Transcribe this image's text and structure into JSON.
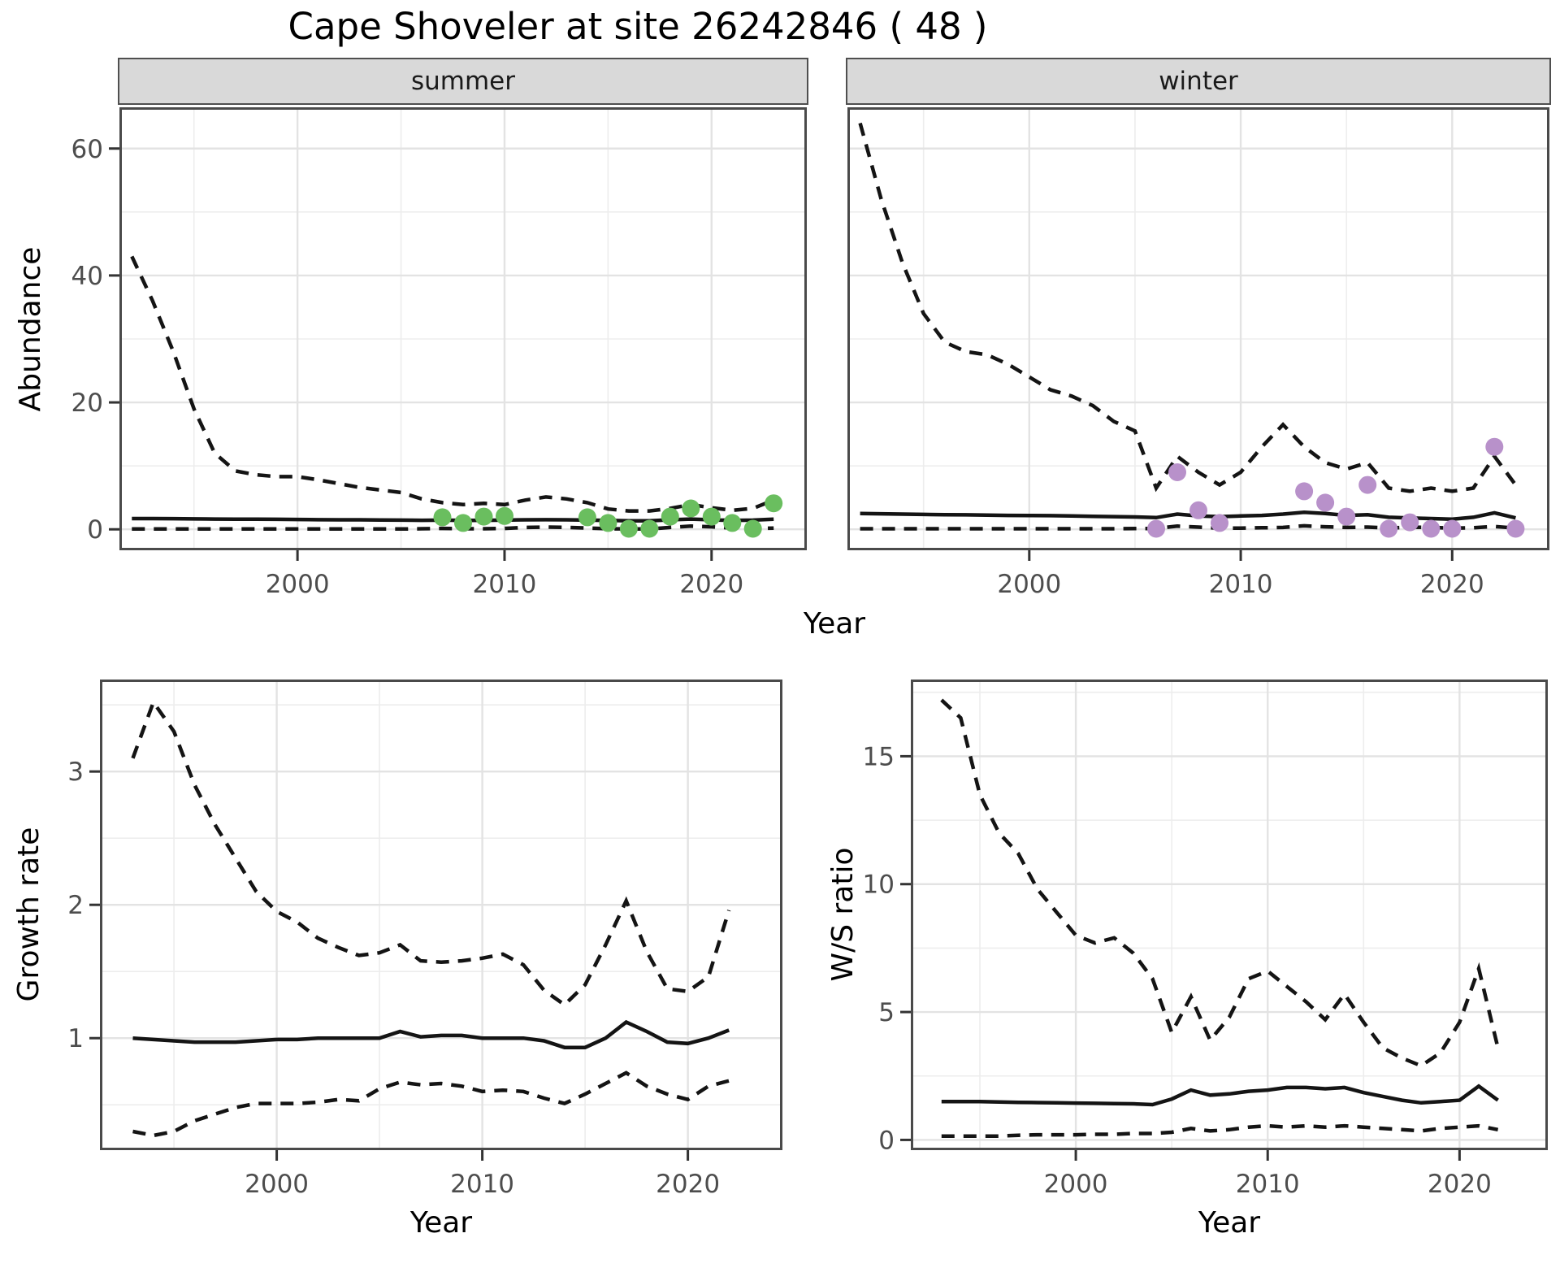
{
  "title": "Cape Shoveler at site 26242846 ( 48 )",
  "x_label": "Year",
  "colors": {
    "summer_points": "#6ABE5F",
    "winter_points": "#B891CA",
    "line": "#141414",
    "grid_major": "#E3E3E3",
    "grid_minor": "#EDEDED",
    "panel_border": "#4a4a4a",
    "strip_bg": "#D9D9D9",
    "axis_text": "#4d4d4d",
    "tick_mark": "#333333"
  },
  "axis": {
    "x_range": [
      1991.4,
      2024.6
    ],
    "x_ticks": [
      2000,
      2010,
      2020
    ],
    "x_minor": [
      1995,
      2005,
      2015
    ]
  },
  "chart_data": [
    {
      "id": "summer_abundance",
      "type": "line+scatter",
      "facet_label": "summer",
      "ylabel": "Abundance",
      "xlabel": "Year",
      "legend": "none",
      "grid": true,
      "y_range": [
        -3.3,
        66.5
      ],
      "y_ticks": [
        0,
        20,
        40,
        60
      ],
      "y_minor": [
        10,
        30,
        50
      ],
      "years": [
        1992,
        1993,
        1994,
        1995,
        1996,
        1997,
        1998,
        1999,
        2000,
        2001,
        2002,
        2003,
        2004,
        2005,
        2006,
        2007,
        2008,
        2009,
        2010,
        2011,
        2012,
        2013,
        2014,
        2015,
        2016,
        2017,
        2018,
        2019,
        2020,
        2021,
        2022,
        2023
      ],
      "series": [
        {
          "name": "fit",
          "style": "solid",
          "values": [
            1.7,
            1.7,
            1.68,
            1.65,
            1.62,
            1.6,
            1.6,
            1.58,
            1.55,
            1.52,
            1.5,
            1.5,
            1.48,
            1.45,
            1.42,
            1.45,
            1.4,
            1.42,
            1.45,
            1.5,
            1.52,
            1.5,
            1.45,
            1.4,
            1.35,
            1.35,
            1.5,
            1.62,
            1.5,
            1.4,
            1.45,
            1.6
          ]
        },
        {
          "name": "upper_ci",
          "style": "dashed",
          "values": [
            43,
            36,
            28,
            19,
            12,
            9.2,
            8.6,
            8.3,
            8.3,
            7.8,
            7.2,
            6.6,
            6.2,
            5.8,
            4.8,
            4.2,
            3.9,
            4.1,
            3.9,
            4.6,
            5.1,
            4.8,
            4.2,
            3.2,
            2.9,
            2.9,
            3.3,
            3.9,
            3.4,
            3.0,
            3.3,
            4.6
          ]
        },
        {
          "name": "lower_ci",
          "style": "dashed",
          "values": [
            0.05,
            0.05,
            0.05,
            0.05,
            0.05,
            0.05,
            0.05,
            0.05,
            0.05,
            0.05,
            0.05,
            0.05,
            0.05,
            0.05,
            0.1,
            0.15,
            0.1,
            0.1,
            0.15,
            0.3,
            0.35,
            0.3,
            0.2,
            0.1,
            0.05,
            0.05,
            0.3,
            0.5,
            0.4,
            0.2,
            0.1,
            0.2
          ]
        }
      ],
      "points": {
        "name": "observed_counts",
        "color_key": "summer_points",
        "data": [
          [
            2007,
            1.9
          ],
          [
            2008,
            1.0
          ],
          [
            2009,
            2.0
          ],
          [
            2010,
            2.1
          ],
          [
            2014,
            1.9
          ],
          [
            2015,
            1.0
          ],
          [
            2016,
            0.1
          ],
          [
            2017,
            0.1
          ],
          [
            2018,
            2.0
          ],
          [
            2019,
            3.3
          ],
          [
            2020,
            2.0
          ],
          [
            2021,
            1.0
          ],
          [
            2022,
            0.1
          ],
          [
            2023,
            4.1
          ]
        ]
      }
    },
    {
      "id": "winter_abundance",
      "type": "line+scatter",
      "facet_label": "winter",
      "ylabel": "Abundance",
      "xlabel": "Year",
      "legend": "none",
      "grid": true,
      "y_range": [
        -3.3,
        66.5
      ],
      "y_ticks": [
        0,
        20,
        40,
        60
      ],
      "y_minor": [
        10,
        30,
        50
      ],
      "years": [
        1992,
        1993,
        1994,
        1995,
        1996,
        1997,
        1998,
        1999,
        2000,
        2001,
        2002,
        2003,
        2004,
        2005,
        2006,
        2007,
        2008,
        2009,
        2010,
        2011,
        2012,
        2013,
        2014,
        2015,
        2016,
        2017,
        2018,
        2019,
        2020,
        2021,
        2022,
        2023
      ],
      "series": [
        {
          "name": "fit",
          "style": "solid",
          "values": [
            2.5,
            2.45,
            2.4,
            2.35,
            2.3,
            2.28,
            2.25,
            2.2,
            2.18,
            2.15,
            2.1,
            2.05,
            2.0,
            1.95,
            1.85,
            2.4,
            2.1,
            2.0,
            2.1,
            2.2,
            2.4,
            2.7,
            2.5,
            2.2,
            2.3,
            1.9,
            1.8,
            1.7,
            1.6,
            1.9,
            2.6,
            1.8
          ]
        },
        {
          "name": "upper_ci",
          "style": "dashed",
          "values": [
            64,
            52,
            42,
            34,
            29.5,
            28,
            27.5,
            26,
            24,
            22,
            21,
            19.5,
            17,
            15.5,
            6.5,
            11.5,
            9,
            7,
            9,
            13,
            16.5,
            13,
            10.5,
            9.5,
            10.5,
            6.5,
            6,
            6.5,
            6,
            6.5,
            11.5,
            7
          ]
        },
        {
          "name": "lower_ci",
          "style": "dashed",
          "values": [
            0.1,
            0.1,
            0.1,
            0.1,
            0.1,
            0.1,
            0.1,
            0.1,
            0.1,
            0.1,
            0.1,
            0.1,
            0.1,
            0.12,
            0.15,
            0.5,
            0.35,
            0.2,
            0.2,
            0.25,
            0.3,
            0.55,
            0.4,
            0.3,
            0.35,
            0.2,
            0.35,
            0.3,
            0.2,
            0.25,
            0.45,
            0.2
          ]
        }
      ],
      "points": {
        "name": "observed_counts",
        "color_key": "winter_points",
        "data": [
          [
            2006,
            0.1
          ],
          [
            2007,
            9
          ],
          [
            2008,
            3
          ],
          [
            2009,
            1
          ],
          [
            2013,
            6
          ],
          [
            2014,
            4.2
          ],
          [
            2015,
            2
          ],
          [
            2016,
            7
          ],
          [
            2017,
            0.1
          ],
          [
            2018,
            1.1
          ],
          [
            2019,
            0.1
          ],
          [
            2020,
            0.1
          ],
          [
            2022,
            13
          ],
          [
            2023,
            0.1
          ]
        ]
      }
    },
    {
      "id": "growth_rate",
      "type": "line",
      "facet_label": "",
      "ylabel": "Growth rate",
      "xlabel": "Year",
      "legend": "none",
      "grid": true,
      "y_range": [
        0.16,
        3.69
      ],
      "y_ticks": [
        1,
        2,
        3
      ],
      "y_minor": [
        0.5,
        1.5,
        2.5,
        3.5
      ],
      "years": [
        1993,
        1994,
        1995,
        1996,
        1997,
        1998,
        1999,
        2000,
        2001,
        2002,
        2003,
        2004,
        2005,
        2006,
        2007,
        2008,
        2009,
        2010,
        2011,
        2012,
        2013,
        2014,
        2015,
        2016,
        2017,
        2018,
        2019,
        2020,
        2021,
        2022
      ],
      "series": [
        {
          "name": "fit",
          "style": "solid",
          "values": [
            1.0,
            0.99,
            0.98,
            0.97,
            0.97,
            0.97,
            0.98,
            0.99,
            0.99,
            1.0,
            1.0,
            1.0,
            1.0,
            1.05,
            1.01,
            1.02,
            1.02,
            1.0,
            1.0,
            1.0,
            0.98,
            0.93,
            0.93,
            1.0,
            1.12,
            1.05,
            0.97,
            0.96,
            1.0,
            1.06
          ]
        },
        {
          "name": "upper_ci",
          "style": "dashed",
          "values": [
            3.1,
            3.52,
            3.3,
            2.9,
            2.6,
            2.35,
            2.1,
            1.95,
            1.87,
            1.75,
            1.68,
            1.62,
            1.64,
            1.7,
            1.58,
            1.57,
            1.58,
            1.6,
            1.63,
            1.55,
            1.36,
            1.25,
            1.4,
            1.7,
            2.03,
            1.65,
            1.37,
            1.35,
            1.46,
            1.96
          ]
        },
        {
          "name": "lower_ci",
          "style": "dashed",
          "values": [
            0.3,
            0.27,
            0.3,
            0.38,
            0.43,
            0.48,
            0.51,
            0.51,
            0.51,
            0.52,
            0.54,
            0.53,
            0.62,
            0.67,
            0.65,
            0.66,
            0.64,
            0.6,
            0.61,
            0.6,
            0.55,
            0.51,
            0.58,
            0.66,
            0.74,
            0.64,
            0.58,
            0.54,
            0.64,
            0.68
          ]
        }
      ],
      "points": null
    },
    {
      "id": "ws_ratio",
      "type": "line",
      "facet_label": "",
      "ylabel": "W/S ratio",
      "xlabel": "Year",
      "legend": "none",
      "grid": true,
      "y_range": [
        -0.4,
        18.0
      ],
      "y_ticks": [
        0,
        5,
        10,
        15
      ],
      "y_minor": [
        2.5,
        7.5,
        12.5,
        17.5
      ],
      "years": [
        1993,
        1994,
        1995,
        1996,
        1997,
        1998,
        1999,
        2000,
        2001,
        2002,
        2003,
        2004,
        2005,
        2006,
        2007,
        2008,
        2009,
        2010,
        2011,
        2012,
        2013,
        2014,
        2015,
        2016,
        2017,
        2018,
        2019,
        2020,
        2021,
        2022
      ],
      "series": [
        {
          "name": "fit",
          "style": "solid",
          "values": [
            1.5,
            1.5,
            1.5,
            1.48,
            1.47,
            1.46,
            1.45,
            1.44,
            1.43,
            1.42,
            1.41,
            1.38,
            1.6,
            1.95,
            1.75,
            1.8,
            1.9,
            1.95,
            2.05,
            2.05,
            2.0,
            2.05,
            1.85,
            1.7,
            1.55,
            1.45,
            1.5,
            1.55,
            2.1,
            1.55
          ]
        },
        {
          "name": "upper_ci",
          "style": "dashed",
          "values": [
            17.2,
            16.5,
            13.5,
            12.0,
            11.2,
            9.8,
            8.9,
            8.0,
            7.7,
            7.9,
            7.3,
            6.3,
            4.2,
            5.6,
            3.9,
            4.8,
            6.3,
            6.6,
            6.0,
            5.4,
            4.7,
            5.7,
            4.6,
            3.6,
            3.2,
            2.9,
            3.4,
            4.6,
            6.7,
            3.6
          ]
        },
        {
          "name": "lower_ci",
          "style": "dashed",
          "values": [
            0.15,
            0.15,
            0.15,
            0.15,
            0.18,
            0.2,
            0.2,
            0.2,
            0.22,
            0.22,
            0.25,
            0.25,
            0.3,
            0.45,
            0.35,
            0.4,
            0.5,
            0.55,
            0.5,
            0.55,
            0.5,
            0.55,
            0.5,
            0.45,
            0.4,
            0.35,
            0.45,
            0.5,
            0.55,
            0.4
          ]
        }
      ],
      "points": null
    }
  ]
}
